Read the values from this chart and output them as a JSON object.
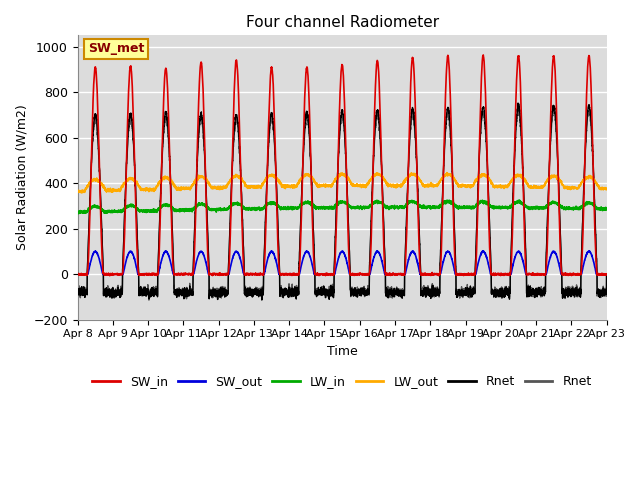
{
  "title": "Four channel Radiometer",
  "ylabel": "Solar Radiation (W/m2)",
  "xlabel": "Time",
  "ylim": [
    -200,
    1050
  ],
  "yticks": [
    -200,
    0,
    200,
    400,
    600,
    800,
    1000
  ],
  "xtick_labels": [
    "Apr 8",
    "Apr 9",
    "Apr 10",
    "Apr 11",
    "Apr 12",
    "Apr 13",
    "Apr 14",
    "Apr 15",
    "Apr 16",
    "Apr 17",
    "Apr 18",
    "Apr 19",
    "Apr 20",
    "Apr 21",
    "Apr 22",
    "Apr 23"
  ],
  "annotation_text": "SW_met",
  "bg_color": "#dcdcdc",
  "sw_in_color": "#dd0000",
  "sw_out_color": "#0000dd",
  "lw_in_color": "#00aa00",
  "lw_out_color": "#ffaa00",
  "rnet1_color": "#000000",
  "rnet2_color": "#555555",
  "legend_entries": [
    {
      "label": "SW_in",
      "color": "#dd0000"
    },
    {
      "label": "SW_out",
      "color": "#0000dd"
    },
    {
      "label": "LW_in",
      "color": "#00aa00"
    },
    {
      "label": "LW_out",
      "color": "#ffaa00"
    },
    {
      "label": "Rnet",
      "color": "#000000"
    },
    {
      "label": "Rnet",
      "color": "#555555"
    }
  ]
}
